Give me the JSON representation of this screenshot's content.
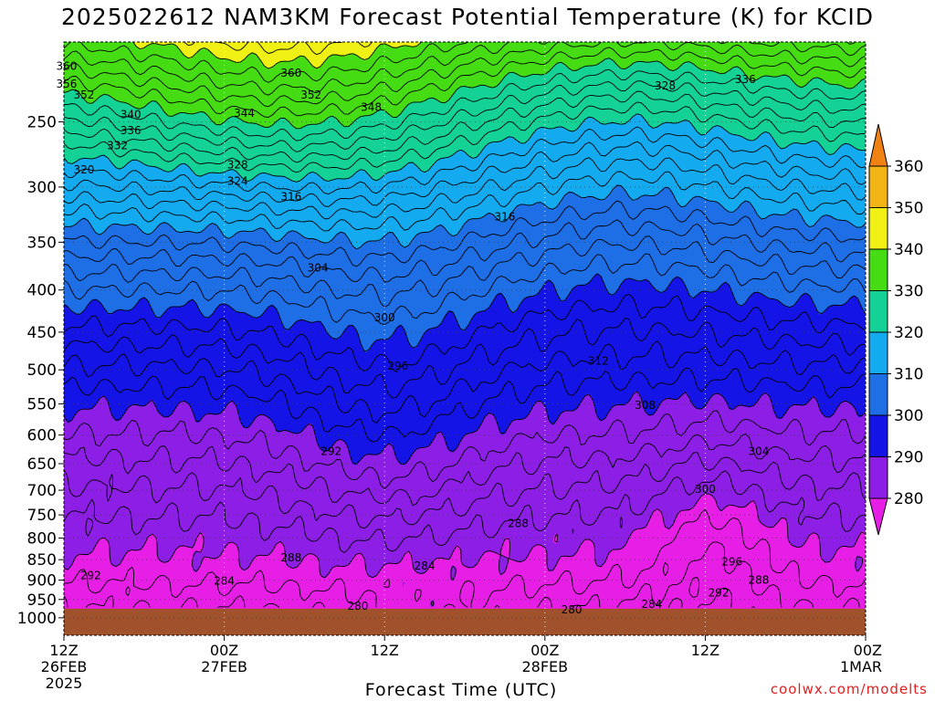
{
  "header": {
    "title": "2025022612 NAM3KM Forecast Potential Temperature (K) for KCID"
  },
  "footer": {
    "credit": "coolwx.com/modelts"
  },
  "chart_data": {
    "type": "contour",
    "title": "2025022612 NAM3KM Forecast Potential Temperature (K) for KCID",
    "xlabel": "Forecast Time (UTC)",
    "ylabel": "",
    "y_axis": {
      "scale": "log-pressure",
      "range_hpa": [
        200,
        1050
      ],
      "ticks": [
        250,
        300,
        350,
        400,
        450,
        500,
        550,
        600,
        650,
        700,
        750,
        800,
        850,
        900,
        950,
        1000
      ],
      "grid": true
    },
    "x_axis": {
      "range_hours": [
        0,
        60
      ],
      "ticks": [
        {
          "hour": 0,
          "lines": [
            "12Z",
            "26FEB",
            "2025"
          ]
        },
        {
          "hour": 12,
          "lines": [
            "00Z",
            "27FEB"
          ]
        },
        {
          "hour": 24,
          "lines": [
            "12Z"
          ]
        },
        {
          "hour": 36,
          "lines": [
            "00Z",
            "28FEB"
          ]
        },
        {
          "hour": 48,
          "lines": [
            "12Z"
          ]
        },
        {
          "hour": 60,
          "lines": [
            "00Z",
            "1MAR"
          ]
        }
      ],
      "grid": true
    },
    "colorbar": {
      "levels": [
        280,
        290,
        300,
        310,
        320,
        330,
        340,
        350,
        360
      ],
      "colors": [
        "#e61ee6",
        "#8c1ee6",
        "#1414e6",
        "#1e6ee6",
        "#14aaf0",
        "#14d296",
        "#46dc14",
        "#f0f014",
        "#f0b414",
        "#f08214"
      ],
      "extend": "both"
    },
    "ground_color": "#a0522d",
    "contour_interval": 2,
    "contour_labels": [
      {
        "t": 0.2,
        "p": 214,
        "text": "360"
      },
      {
        "t": 0.2,
        "p": 225,
        "text": "356"
      },
      {
        "t": 1.5,
        "p": 232,
        "text": "352"
      },
      {
        "t": 5,
        "p": 245,
        "text": "340"
      },
      {
        "t": 5,
        "p": 256,
        "text": "336"
      },
      {
        "t": 4,
        "p": 267,
        "text": "332"
      },
      {
        "t": 1.5,
        "p": 286,
        "text": "320"
      },
      {
        "t": 17,
        "p": 218,
        "text": "360"
      },
      {
        "t": 18.5,
        "p": 232,
        "text": "352"
      },
      {
        "t": 13.5,
        "p": 244,
        "text": "344"
      },
      {
        "t": 23,
        "p": 240,
        "text": "348"
      },
      {
        "t": 13,
        "p": 282,
        "text": "328"
      },
      {
        "t": 13,
        "p": 295,
        "text": "324"
      },
      {
        "t": 17,
        "p": 308,
        "text": "316"
      },
      {
        "t": 45,
        "p": 226,
        "text": "328"
      },
      {
        "t": 51,
        "p": 222,
        "text": "336"
      },
      {
        "t": 33,
        "p": 326,
        "text": "316"
      },
      {
        "t": 19,
        "p": 376,
        "text": "304"
      },
      {
        "t": 24,
        "p": 432,
        "text": "300"
      },
      {
        "t": 25,
        "p": 495,
        "text": "296"
      },
      {
        "t": 40,
        "p": 488,
        "text": "312"
      },
      {
        "t": 43.5,
        "p": 552,
        "text": "308"
      },
      {
        "t": 20,
        "p": 628,
        "text": "292"
      },
      {
        "t": 52,
        "p": 628,
        "text": "304"
      },
      {
        "t": 48,
        "p": 698,
        "text": "300"
      },
      {
        "t": 34,
        "p": 768,
        "text": "288"
      },
      {
        "t": 17,
        "p": 845,
        "text": "288"
      },
      {
        "t": 27,
        "p": 865,
        "text": "284"
      },
      {
        "t": 2,
        "p": 888,
        "text": "292"
      },
      {
        "t": 12,
        "p": 902,
        "text": "284"
      },
      {
        "t": 50,
        "p": 855,
        "text": "296"
      },
      {
        "t": 52,
        "p": 900,
        "text": "288"
      },
      {
        "t": 22,
        "p": 968,
        "text": "280"
      },
      {
        "t": 38,
        "p": 978,
        "text": "280"
      },
      {
        "t": 44,
        "p": 963,
        "text": "284"
      },
      {
        "t": 49,
        "p": 933,
        "text": "292"
      }
    ]
  }
}
